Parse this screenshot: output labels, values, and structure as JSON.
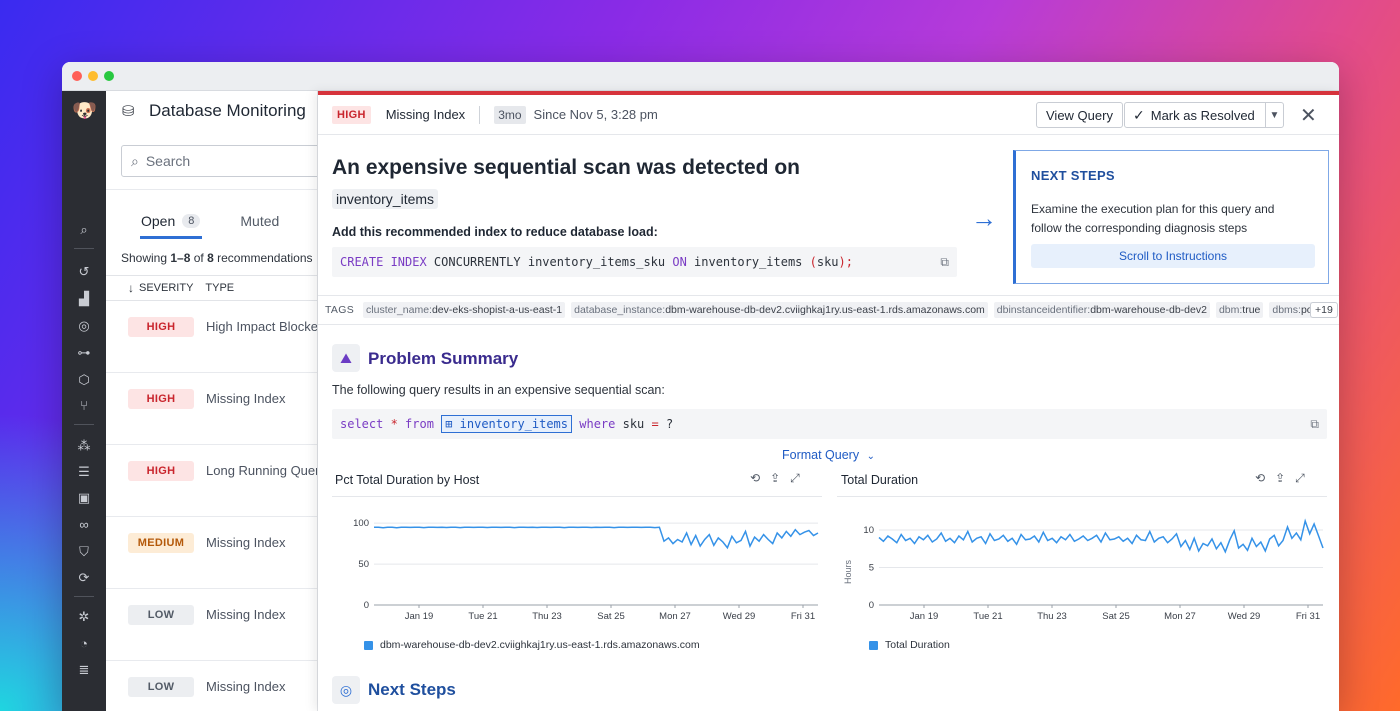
{
  "app": {
    "title": "Database Monitoring",
    "search_placeholder": "Search"
  },
  "nav_icons": [
    "datadog-logo",
    "search-icon",
    "history-icon",
    "chart-icon",
    "target-icon",
    "binoculars-icon",
    "cube-icon",
    "git-icon",
    "nodes-icon",
    "list-icon",
    "dashboard-icon",
    "link-icon",
    "shield-icon",
    "refresh-icon",
    "bug-icon",
    "gauge-icon",
    "logs-icon"
  ],
  "list": {
    "tabs": [
      {
        "label": "Open",
        "count": "8"
      },
      {
        "label": "Muted"
      }
    ],
    "showing_prefix": "Showing ",
    "showing_range": "1–8",
    "showing_of": " of ",
    "showing_total": "8",
    "showing_suffix": " recommendations",
    "col_severity": "SEVERITY",
    "col_type": "TYPE",
    "rows": [
      {
        "severity": "HIGH",
        "level": "high",
        "type": "High Impact Blocker"
      },
      {
        "severity": "HIGH",
        "level": "high",
        "type": "Missing Index"
      },
      {
        "severity": "HIGH",
        "level": "high",
        "type": "Long Running Query"
      },
      {
        "severity": "MEDIUM",
        "level": "medium",
        "type": "Missing Index"
      },
      {
        "severity": "LOW",
        "level": "low",
        "type": "Missing Index"
      },
      {
        "severity": "LOW",
        "level": "low",
        "type": "Missing Index"
      }
    ]
  },
  "detail": {
    "severity": "HIGH",
    "type": "Missing Index",
    "age": "3mo",
    "since": "Since Nov 5, 3:28 pm",
    "view_query": "View Query",
    "mark_resolved": "Mark as Resolved",
    "title": "An expensive sequential scan was detected on",
    "table": "inventory_items",
    "subtitle": "Add this recommended index to reduce database load:",
    "code_index": {
      "kw1": "CREATE INDEX",
      "t1": " CONCURRENTLY inventory_items_sku ",
      "kw2": "ON",
      "t2": " inventory_items ",
      "p1": "(",
      "t3": "sku",
      "p2": ");"
    },
    "next_steps_box": {
      "title": "NEXT STEPS",
      "text": "Examine the execution plan for this query and follow the corresponding diagnosis steps",
      "button": "Scroll to Instructions"
    },
    "tags_label": "TAGS",
    "tags": [
      {
        "key": "cluster_name:",
        "value": "dev-eks-shopist-a-us-east-1"
      },
      {
        "key": "database_instance:",
        "value": "dbm-warehouse-db-dev2.cviighkaj1ry.us-east-1.rds.amazonaws.com"
      },
      {
        "key": "dbinstanceidentifier:",
        "value": "dbm-warehouse-db-dev2"
      },
      {
        "key": "dbm:",
        "value": "true"
      },
      {
        "key": "dbms:",
        "value": "po..."
      }
    ],
    "tags_more": "+19",
    "problem_summary": {
      "title": "Problem Summary",
      "text": "The following query results in an expensive sequential scan:",
      "query": {
        "kw1": "select",
        "star": " * ",
        "kw2": "from",
        "table": "inventory_items",
        "kw3": "where",
        "t1": " sku ",
        "eq": "=",
        "t2": " ?"
      },
      "format_link": "Format Query"
    },
    "next_steps_title": "Next Steps"
  },
  "chart_data": [
    {
      "type": "line",
      "title": "Pct Total Duration by Host",
      "x_ticks": [
        "Jan 19",
        "Tue 21",
        "Thu 23",
        "Sat 25",
        "Mon 27",
        "Wed 29",
        "Fri 31"
      ],
      "y_ticks": [
        0,
        50,
        100
      ],
      "ylim": [
        0,
        110
      ],
      "series": [
        {
          "name": "dbm-warehouse-db-dev2.cviighkaj1ry.us-east-1.rds.amazonaws.com",
          "color": "#3592e8",
          "values": [
            95,
            95,
            94.5,
            95,
            95,
            94.5,
            95,
            95,
            94.8,
            95,
            95,
            94.6,
            95,
            95,
            94.8,
            95,
            94.7,
            95,
            95,
            94.6,
            95,
            95,
            94.8,
            95,
            95,
            94.7,
            95,
            95,
            94.9,
            95,
            95,
            94.6,
            95,
            95,
            94.8,
            95,
            94.7,
            95,
            95,
            94.8,
            95,
            95,
            94.6,
            95,
            95,
            94.9,
            95,
            95,
            94.7,
            95,
            94.8,
            95,
            95,
            94.6,
            95,
            95,
            94.8,
            95,
            95,
            94.8,
            95,
            95,
            94.6,
            95,
            78,
            82,
            75,
            80,
            77,
            88,
            74,
            85,
            72,
            80,
            86,
            73,
            82,
            77,
            70,
            84,
            76,
            79,
            90,
            72,
            83,
            78,
            86,
            80,
            75,
            88,
            82,
            90,
            84,
            92,
            86,
            89,
            91,
            85,
            88
          ]
        }
      ]
    },
    {
      "type": "line",
      "title": "Total Duration",
      "ylabel": "Hours",
      "x_ticks": [
        "Jan 19",
        "Tue 21",
        "Thu 23",
        "Sat 25",
        "Mon 27",
        "Wed 29",
        "Fri 31"
      ],
      "y_ticks": [
        0,
        5,
        10
      ],
      "ylim": [
        0,
        12
      ],
      "series": [
        {
          "name": "Total Duration",
          "color": "#3592e8",
          "values": [
            9,
            8.5,
            9.2,
            8.8,
            8.3,
            9.4,
            8.6,
            8.9,
            8.2,
            9.1,
            8.7,
            9.3,
            8.4,
            8.8,
            9.6,
            8.5,
            8.9,
            8.3,
            9.2,
            8.7,
            9.8,
            8.4,
            8.9,
            9.1,
            8.2,
            9.5,
            8.6,
            8.8,
            9.3,
            8.5,
            8.9,
            8.1,
            9.4,
            8.7,
            8.8,
            9.2,
            8.4,
            9.7,
            8.6,
            8.9,
            8.3,
            9.1,
            8.7,
            9.4,
            8.5,
            8.8,
            9.2,
            8.6,
            8.9,
            9.3,
            8.4,
            9.6,
            8.7,
            8.8,
            9.1,
            8.5,
            8.9,
            8.2,
            9.3,
            8.7,
            8.6,
            9.8,
            8.4,
            8.9,
            9.1,
            8.3,
            8.8,
            9.5,
            7.8,
            8.6,
            7.4,
            8.9,
            7.2,
            8.2,
            7.9,
            8.8,
            7.5,
            8.3,
            7.1,
            8.7,
            9.9,
            7.6,
            8.1,
            7.3,
            8.9,
            7.8,
            8.4,
            7.2,
            8.8,
            9.3,
            7.9,
            8.6,
            10.4,
            8.9,
            9.6,
            8.7,
            11.2,
            9.5,
            10.8,
            9.2,
            7.6
          ]
        }
      ]
    }
  ]
}
